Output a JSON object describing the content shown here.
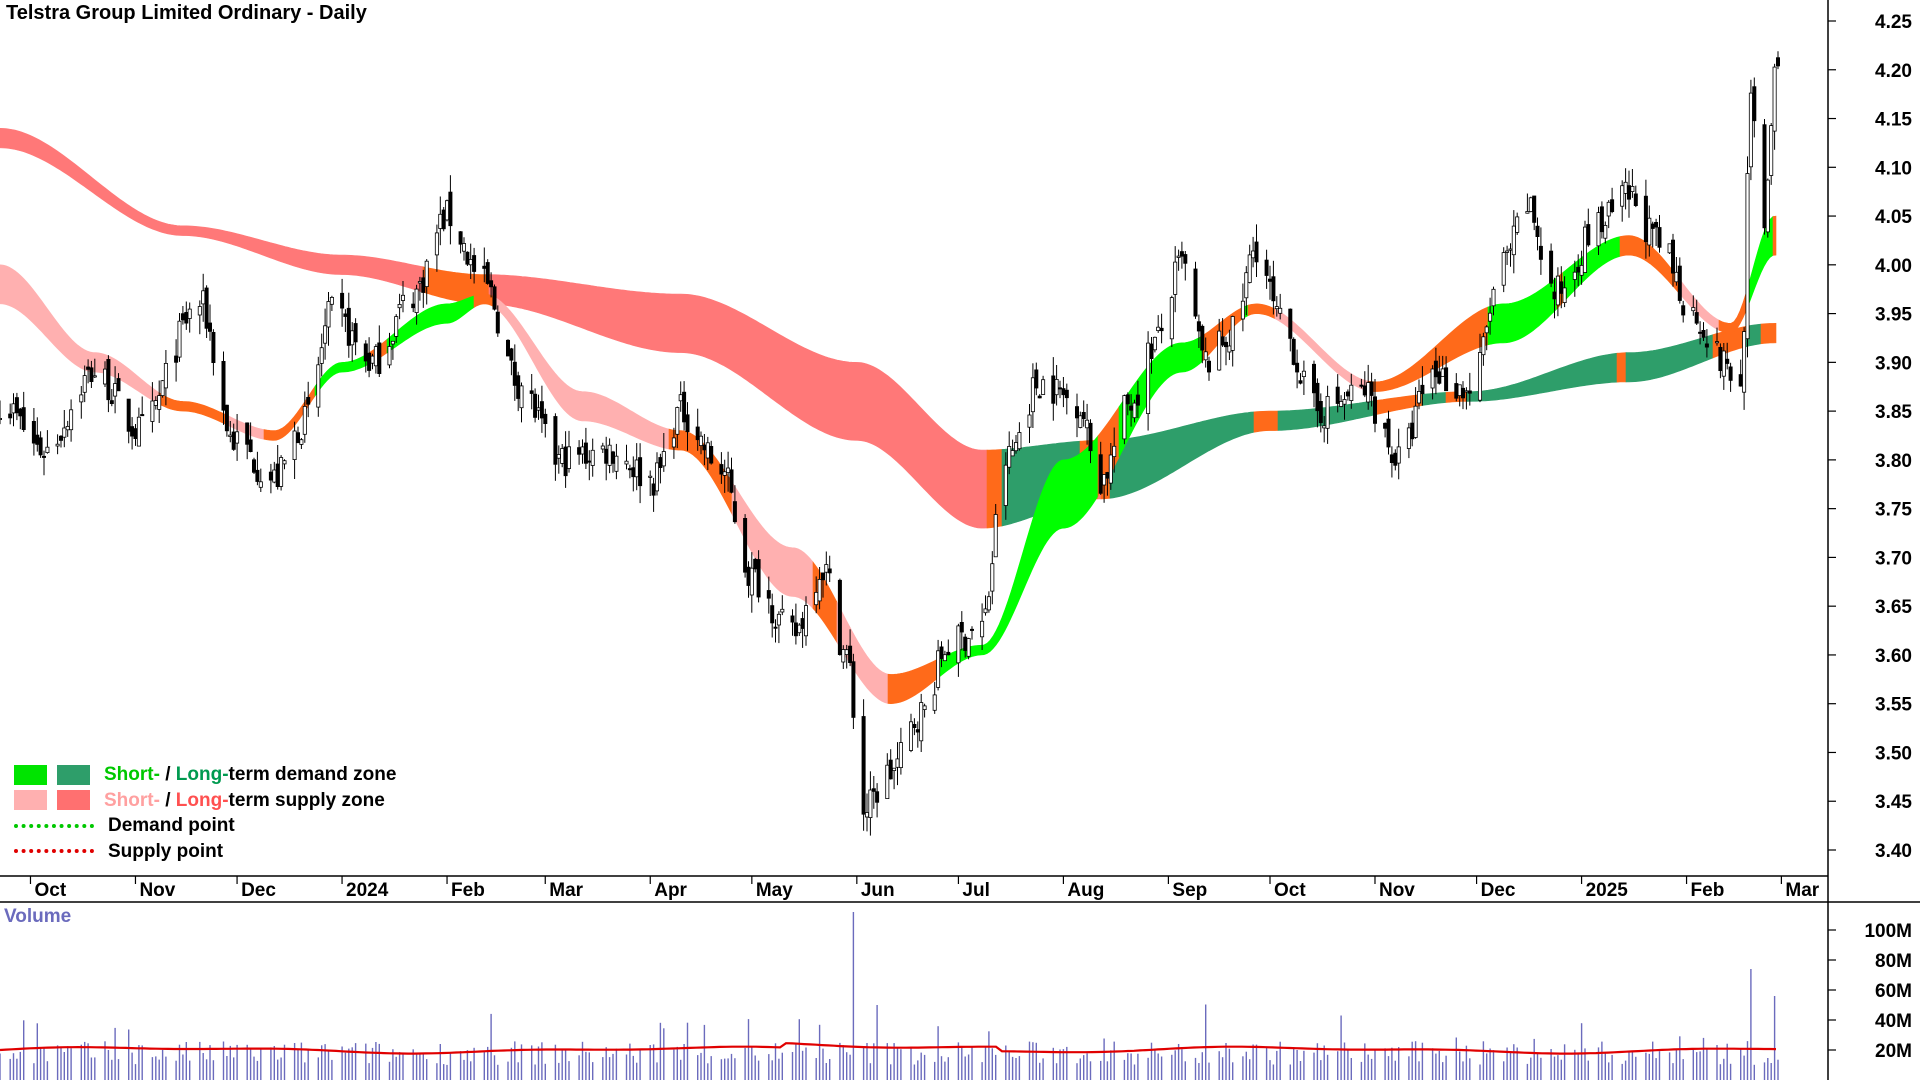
{
  "title": "Telstra Group Limited Ordinary - Daily",
  "volume_title": "Volume",
  "legend": {
    "demand_zone": {
      "short": "Short-",
      "sep": " / ",
      "long": "Long-",
      "rest": "term demand zone"
    },
    "supply_zone": {
      "short": "Short-",
      "sep": " / ",
      "long": "Long-",
      "rest": "term supply zone"
    },
    "demand_point": "Demand point",
    "supply_point": "Supply point"
  },
  "colors": {
    "short_demand": "#00ff00",
    "long_demand": "#2e9e6a",
    "short_supply": "#ffb0b0",
    "long_supply": "#ff7878",
    "transition": "#ff6a1a",
    "candle": "#000000",
    "volume_bar": "#6b6bbd",
    "volume_ma": "#e00000",
    "demand_point": "#00c800",
    "supply_point": "#e00000",
    "legend_short_green": "#00c800",
    "legend_long_green": "#009a50",
    "legend_short_pink": "#ffa0a0",
    "legend_long_red": "#ff5050"
  },
  "chart_data": {
    "type": "candlestick",
    "title": "Telstra Group Limited Ordinary - Daily",
    "price_axis": {
      "ylim": [
        3.37,
        4.28
      ],
      "ticks": [
        "4.25",
        "4.20",
        "4.15",
        "4.10",
        "4.05",
        "4.00",
        "3.95",
        "3.90",
        "3.85",
        "3.80",
        "3.75",
        "3.70",
        "3.65",
        "3.60",
        "3.55",
        "3.50",
        "3.45",
        "3.40"
      ]
    },
    "x_axis": {
      "ticks": [
        "Oct",
        "Nov",
        "Dec",
        "2024",
        "Feb",
        "Mar",
        "Apr",
        "May",
        "Jun",
        "Jul",
        "Aug",
        "Sep",
        "Oct",
        "Nov",
        "Dec",
        "2025",
        "Feb",
        "Mar"
      ]
    },
    "close_points": [
      {
        "date": "2023-09-22",
        "close": 3.86
      },
      {
        "date": "2023-10-05",
        "close": 3.81
      },
      {
        "date": "2023-10-20",
        "close": 3.89
      },
      {
        "date": "2023-11-02",
        "close": 3.83
      },
      {
        "date": "2023-11-20",
        "close": 3.96
      },
      {
        "date": "2023-11-30",
        "close": 3.82
      },
      {
        "date": "2023-12-12",
        "close": 3.78
      },
      {
        "date": "2023-12-21",
        "close": 3.84
      },
      {
        "date": "2023-12-29",
        "close": 3.95
      },
      {
        "date": "2024-01-10",
        "close": 3.9
      },
      {
        "date": "2024-01-22",
        "close": 3.97
      },
      {
        "date": "2024-02-01",
        "close": 4.05
      },
      {
        "date": "2024-02-12",
        "close": 3.98
      },
      {
        "date": "2024-02-22",
        "close": 3.88
      },
      {
        "date": "2024-03-05",
        "close": 3.8
      },
      {
        "date": "2024-03-20",
        "close": 3.81
      },
      {
        "date": "2024-04-02",
        "close": 3.78
      },
      {
        "date": "2024-04-10",
        "close": 3.85
      },
      {
        "date": "2024-04-22",
        "close": 3.79
      },
      {
        "date": "2024-05-01",
        "close": 3.68
      },
      {
        "date": "2024-05-13",
        "close": 3.62
      },
      {
        "date": "2024-05-22",
        "close": 3.69
      },
      {
        "date": "2024-05-29",
        "close": 3.6
      },
      {
        "date": "2024-06-03",
        "close": 3.44
      },
      {
        "date": "2024-06-11",
        "close": 3.48
      },
      {
        "date": "2024-06-20",
        "close": 3.54
      },
      {
        "date": "2024-06-28",
        "close": 3.61
      },
      {
        "date": "2024-07-08",
        "close": 3.63
      },
      {
        "date": "2024-07-15",
        "close": 3.8
      },
      {
        "date": "2024-07-25",
        "close": 3.88
      },
      {
        "date": "2024-08-05",
        "close": 3.86
      },
      {
        "date": "2024-08-12",
        "close": 3.78
      },
      {
        "date": "2024-08-21",
        "close": 3.86
      },
      {
        "date": "2024-08-28",
        "close": 3.92
      },
      {
        "date": "2024-09-05",
        "close": 4.0
      },
      {
        "date": "2024-09-12",
        "close": 3.9
      },
      {
        "date": "2024-09-20",
        "close": 3.93
      },
      {
        "date": "2024-09-27",
        "close": 4.02
      },
      {
        "date": "2024-10-04",
        "close": 3.94
      },
      {
        "date": "2024-10-15",
        "close": 3.85
      },
      {
        "date": "2024-10-29",
        "close": 3.87
      },
      {
        "date": "2024-11-08",
        "close": 3.8
      },
      {
        "date": "2024-11-18",
        "close": 3.89
      },
      {
        "date": "2024-11-29",
        "close": 3.87
      },
      {
        "date": "2024-12-09",
        "close": 4.0
      },
      {
        "date": "2024-12-16",
        "close": 4.06
      },
      {
        "date": "2024-12-24",
        "close": 3.97
      },
      {
        "date": "2025-01-06",
        "close": 4.04
      },
      {
        "date": "2025-01-15",
        "close": 4.07
      },
      {
        "date": "2025-01-24",
        "close": 4.02
      },
      {
        "date": "2025-02-03",
        "close": 3.95
      },
      {
        "date": "2025-02-12",
        "close": 3.9
      },
      {
        "date": "2025-02-17",
        "close": 3.87
      },
      {
        "date": "2025-02-20",
        "close": 4.16
      },
      {
        "date": "2025-02-24",
        "close": 4.05
      },
      {
        "date": "2025-02-27",
        "close": 4.19
      }
    ],
    "short_term_zone": [
      {
        "date": "2023-09-22",
        "upper": 4.0,
        "lower": 3.96
      },
      {
        "date": "2023-10-20",
        "upper": 3.91,
        "lower": 3.89
      },
      {
        "date": "2023-11-15",
        "upper": 3.86,
        "lower": 3.85
      },
      {
        "date": "2023-12-12",
        "upper": 3.83,
        "lower": 3.82
      },
      {
        "date": "2024-01-01",
        "upper": 3.9,
        "lower": 3.89
      },
      {
        "date": "2024-02-01",
        "upper": 3.96,
        "lower": 3.94
      },
      {
        "date": "2024-02-12",
        "upper": 3.97,
        "lower": 3.96
      },
      {
        "date": "2024-03-12",
        "upper": 3.87,
        "lower": 3.84
      },
      {
        "date": "2024-04-10",
        "upper": 3.83,
        "lower": 3.81
      },
      {
        "date": "2024-05-13",
        "upper": 3.71,
        "lower": 3.66
      },
      {
        "date": "2024-06-11",
        "upper": 3.58,
        "lower": 3.55
      },
      {
        "date": "2024-07-08",
        "upper": 3.61,
        "lower": 3.6
      },
      {
        "date": "2024-08-01",
        "upper": 3.8,
        "lower": 3.73
      },
      {
        "date": "2024-09-05",
        "upper": 3.92,
        "lower": 3.89
      },
      {
        "date": "2024-09-27",
        "upper": 3.96,
        "lower": 3.95
      },
      {
        "date": "2024-11-01",
        "upper": 3.88,
        "lower": 3.87
      },
      {
        "date": "2024-12-09",
        "upper": 3.96,
        "lower": 3.92
      },
      {
        "date": "2025-01-15",
        "upper": 4.03,
        "lower": 4.01
      },
      {
        "date": "2025-02-14",
        "upper": 3.94,
        "lower": 3.93
      },
      {
        "date": "2025-02-27",
        "upper": 4.05,
        "lower": 4.01
      }
    ],
    "long_term_zone": [
      {
        "date": "2023-09-22",
        "upper": 4.14,
        "lower": 4.12
      },
      {
        "date": "2023-11-15",
        "upper": 4.04,
        "lower": 4.03
      },
      {
        "date": "2024-01-01",
        "upper": 4.01,
        "lower": 3.99
      },
      {
        "date": "2024-02-12",
        "upper": 3.99,
        "lower": 3.96
      },
      {
        "date": "2024-04-10",
        "upper": 3.97,
        "lower": 3.91
      },
      {
        "date": "2024-06-01",
        "upper": 3.9,
        "lower": 3.82
      },
      {
        "date": "2024-07-08",
        "upper": 3.81,
        "lower": 3.73
      },
      {
        "date": "2024-08-12",
        "upper": 3.82,
        "lower": 3.76
      },
      {
        "date": "2024-10-01",
        "upper": 3.85,
        "lower": 3.83
      },
      {
        "date": "2024-11-29",
        "upper": 3.87,
        "lower": 3.86
      },
      {
        "date": "2025-01-15",
        "upper": 3.91,
        "lower": 3.88
      },
      {
        "date": "2025-02-27",
        "upper": 3.94,
        "lower": 3.92
      }
    ],
    "volume_axis": {
      "ticks": [
        "100M",
        "80M",
        "60M",
        "40M",
        "20M"
      ],
      "ylim_millions": [
        0,
        112
      ]
    },
    "volume_spikes": [
      {
        "date": "2024-05-31",
        "volume_millions": 112
      },
      {
        "date": "2024-06-07",
        "volume_millions": 50
      },
      {
        "date": "2025-02-20",
        "volume_millions": 74
      },
      {
        "date": "2025-02-27",
        "volume_millions": 56
      }
    ],
    "volume_ma_millions": 20
  }
}
